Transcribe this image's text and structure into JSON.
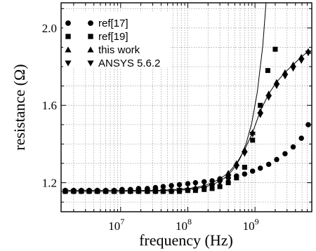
{
  "chart_data": {
    "type": "line",
    "xlabel": "frequency (Hz)",
    "ylabel": "resistance (Ω)",
    "xscale": "log",
    "xlim": [
      1300000.0,
      7000000000.0
    ],
    "ylim": [
      1.05,
      2.13
    ],
    "grid": true,
    "legend_position": "top-left",
    "x_ticks": [
      {
        "value": 10000000.0,
        "base": "10",
        "exp": "7"
      },
      {
        "value": 100000000.0,
        "base": "10",
        "exp": "8"
      },
      {
        "value": 1000000000.0,
        "base": "10",
        "exp": "9"
      }
    ],
    "y_ticks": [
      {
        "value": 1.2,
        "label": "1.2"
      },
      {
        "value": 1.6,
        "label": "1.6"
      },
      {
        "value": 2.0,
        "label": "2.0"
      }
    ],
    "series": [
      {
        "name": "ref[17]",
        "marker": "circle",
        "x": [
          1500000.0,
          2000000.0,
          2600000.0,
          3400000.0,
          4500000.0,
          6000000.0,
          8000000.0,
          10500000.0,
          14000000.0,
          18500000.0,
          25000000.0,
          33000000.0,
          43000000.0,
          57000000.0,
          75000000.0,
          100000000.0,
          130000000.0,
          175000000.0,
          230000000.0,
          300000000.0,
          400000000.0,
          530000000.0,
          700000000.0,
          920000000.0,
          1200000000.0,
          1600000000.0,
          2100000000.0,
          2800000000.0,
          3700000000.0,
          4900000000.0,
          6200000000.0
        ],
        "values": [
          1.16,
          1.16,
          1.16,
          1.16,
          1.16,
          1.16,
          1.16,
          1.165,
          1.165,
          1.17,
          1.17,
          1.175,
          1.18,
          1.185,
          1.19,
          1.195,
          1.2,
          1.205,
          1.21,
          1.22,
          1.225,
          1.235,
          1.245,
          1.26,
          1.275,
          1.295,
          1.32,
          1.35,
          1.385,
          1.43,
          1.5
        ],
        "line": false
      },
      {
        "name": "ref[19]",
        "marker": "square",
        "x": [
          1500000.0,
          2000000.0,
          2600000.0,
          3400000.0,
          4500000.0,
          6000000.0,
          8000000.0,
          10500000.0,
          14000000.0,
          18500000.0,
          25000000.0,
          33000000.0,
          43000000.0,
          57000000.0,
          75000000.0,
          100000000.0,
          130000000.0,
          175000000.0,
          230000000.0,
          300000000.0,
          400000000.0,
          530000000.0,
          700000000.0,
          920000000.0,
          1200000000.0,
          1550000000.0,
          2000000000.0
        ],
        "values": [
          1.155,
          1.155,
          1.155,
          1.155,
          1.155,
          1.155,
          1.155,
          1.155,
          1.155,
          1.155,
          1.155,
          1.155,
          1.155,
          1.155,
          1.155,
          1.16,
          1.16,
          1.165,
          1.17,
          1.18,
          1.2,
          1.225,
          1.28,
          1.42,
          1.6,
          1.78,
          1.89
        ],
        "line": false
      },
      {
        "name": "this work",
        "marker": "triangle-up",
        "x": [
          1500000.0,
          2000000.0,
          2600000.0,
          3400000.0,
          4500000.0,
          6000000.0,
          8000000.0,
          10500000.0,
          14000000.0,
          18500000.0,
          25000000.0,
          33000000.0,
          43000000.0,
          57000000.0,
          75000000.0,
          100000000.0,
          130000000.0,
          175000000.0,
          230000000.0,
          300000000.0,
          400000000.0,
          530000000.0,
          700000000.0,
          920000000.0,
          1200000000.0,
          1600000000.0,
          2100000000.0,
          2800000000.0,
          3700000000.0,
          4900000000.0,
          6200000000.0
        ],
        "values": [
          1.16,
          1.16,
          1.16,
          1.16,
          1.16,
          1.16,
          1.16,
          1.16,
          1.16,
          1.16,
          1.16,
          1.16,
          1.16,
          1.165,
          1.165,
          1.17,
          1.175,
          1.185,
          1.2,
          1.22,
          1.25,
          1.3,
          1.37,
          1.46,
          1.57,
          1.66,
          1.72,
          1.77,
          1.81,
          1.85,
          1.88
        ],
        "line": true
      },
      {
        "name": "ANSYS 5.6.2",
        "marker": "triangle-down",
        "x": [
          1500000.0,
          2000000.0,
          2600000.0,
          3400000.0,
          4500000.0,
          6000000.0,
          8000000.0,
          10500000.0,
          14000000.0,
          18500000.0,
          25000000.0,
          33000000.0,
          43000000.0,
          57000000.0,
          75000000.0,
          100000000.0,
          130000000.0,
          175000000.0,
          230000000.0,
          300000000.0,
          400000000.0,
          530000000.0,
          700000000.0,
          920000000.0,
          1200000000.0,
          1600000000.0,
          2100000000.0,
          2800000000.0,
          3700000000.0,
          4900000000.0,
          6200000000.0
        ],
        "values": [
          1.155,
          1.155,
          1.155,
          1.155,
          1.155,
          1.155,
          1.155,
          1.155,
          1.155,
          1.155,
          1.155,
          1.155,
          1.155,
          1.155,
          1.16,
          1.16,
          1.165,
          1.17,
          1.18,
          1.2,
          1.23,
          1.28,
          1.35,
          1.45,
          1.55,
          1.64,
          1.7,
          1.75,
          1.79,
          1.83,
          1.87
        ],
        "line": false
      }
    ]
  }
}
